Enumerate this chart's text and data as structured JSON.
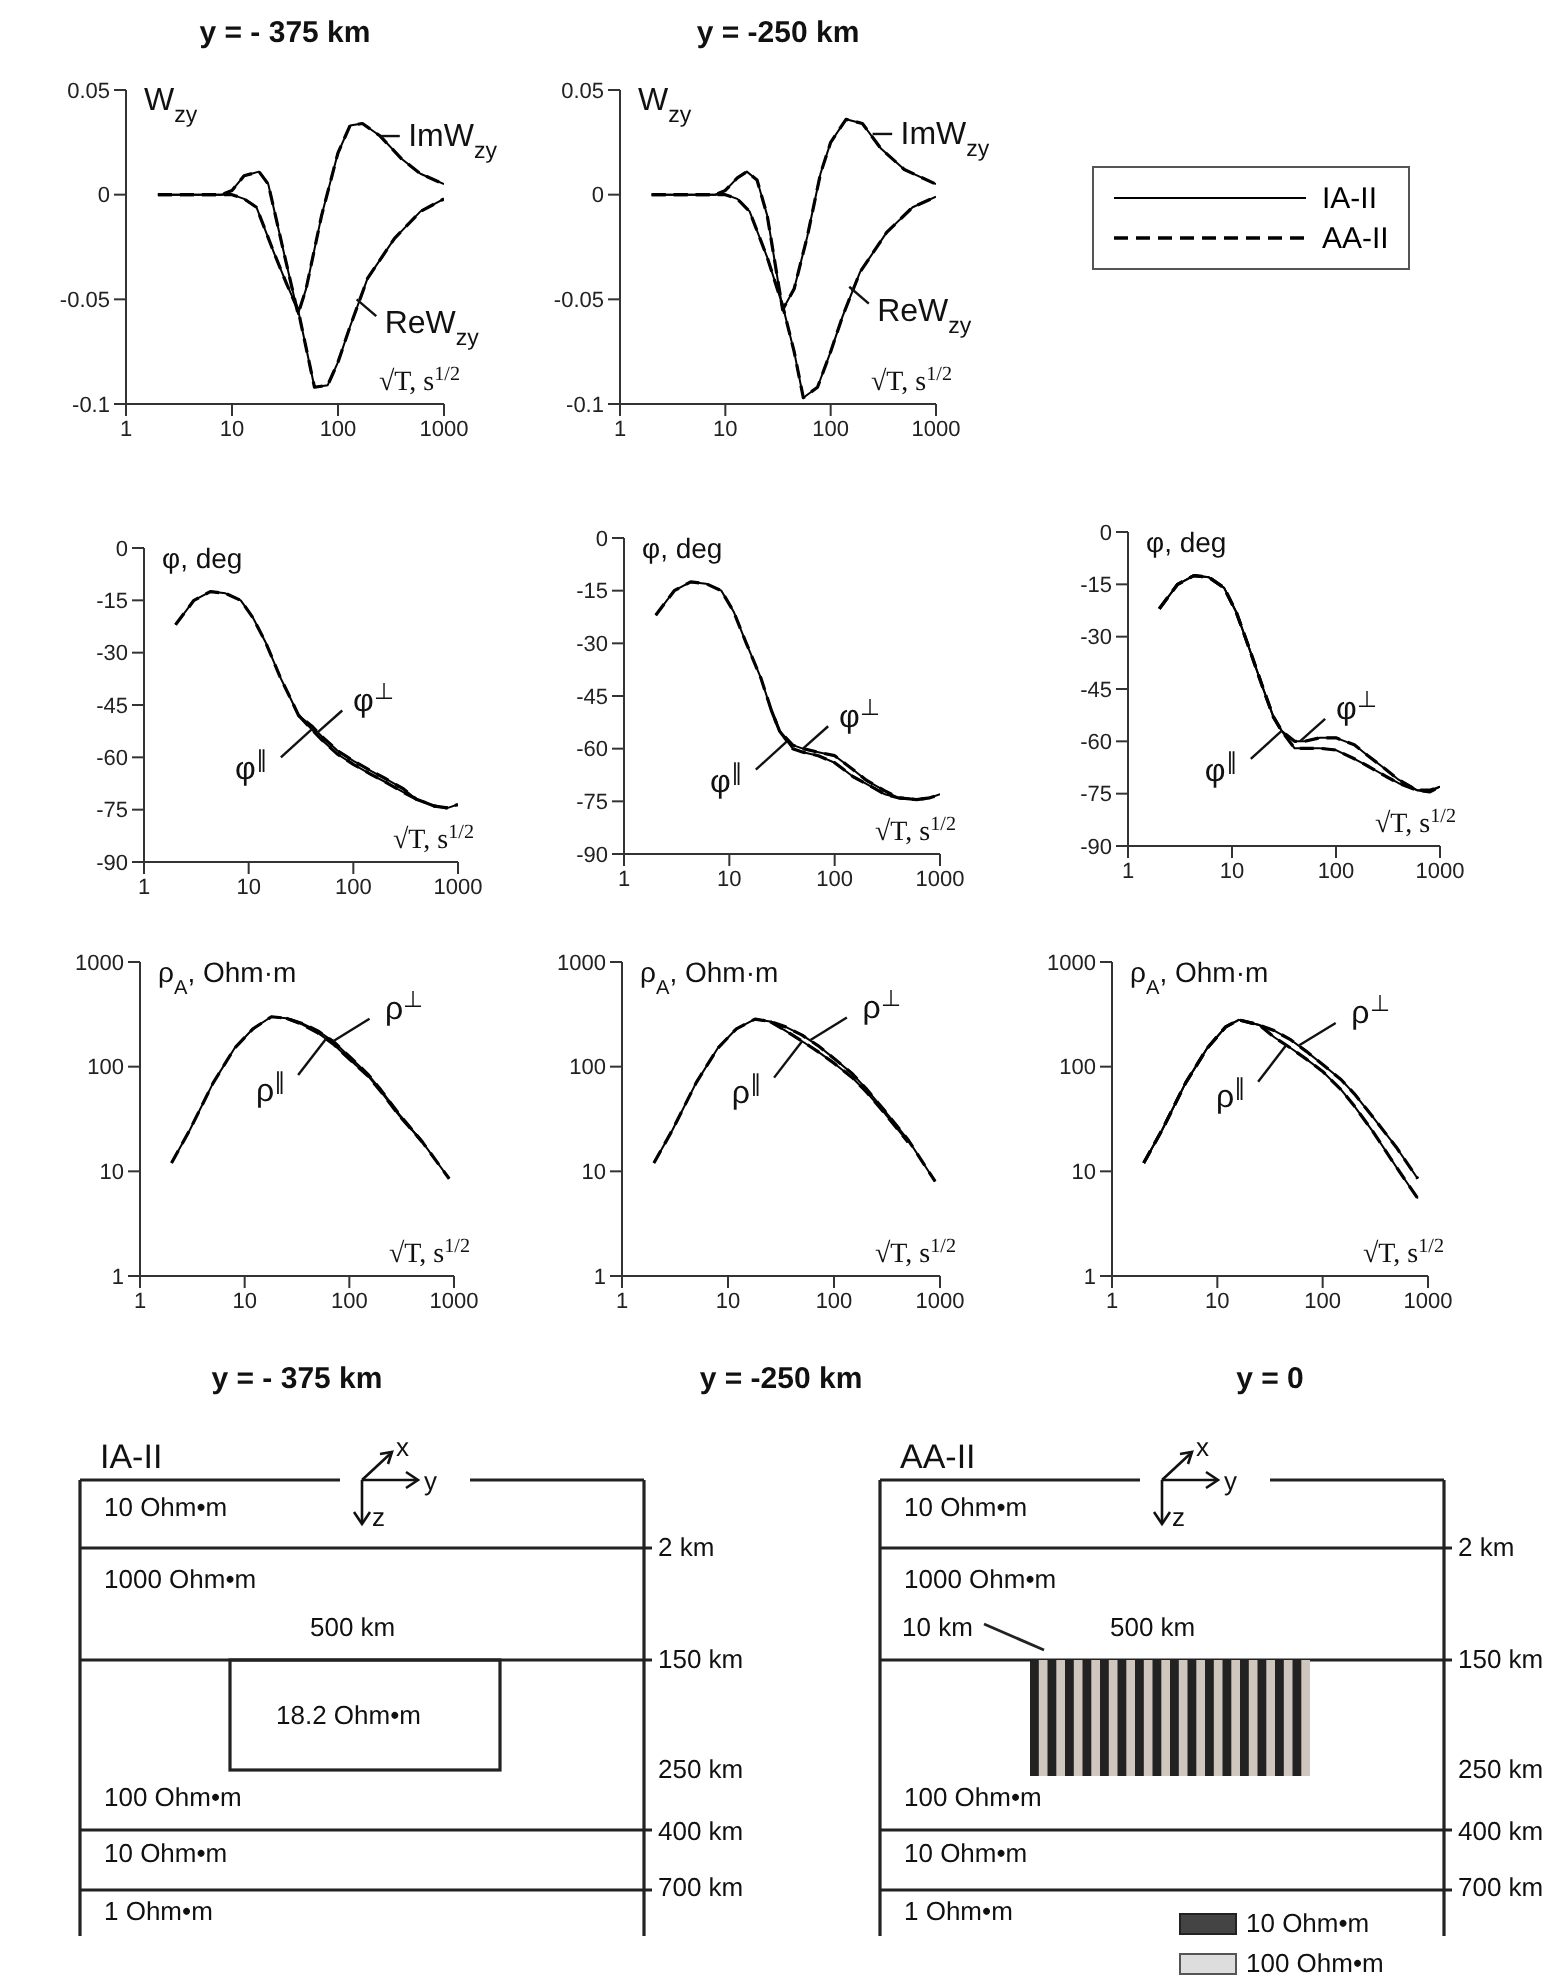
{
  "chart_data": [
    {
      "type": "line",
      "title": "y = - 375 km",
      "ylabel": "W$_{zy}$",
      "xlabel": "√T, s$^{1/2}$",
      "log": "x",
      "xlim": [
        1,
        1000
      ],
      "xticks": [
        1,
        10,
        100,
        1000
      ],
      "ylim": [
        -0.1,
        0.05
      ],
      "yticks": [
        0.05,
        0,
        -0.05,
        -0.1
      ],
      "series": [
        {
          "color": "#000000",
          "line_style": "solid",
          "x": [
            2,
            4,
            8,
            10,
            13,
            18,
            22,
            30,
            42,
            50,
            70,
            100,
            130,
            170,
            250,
            400,
            600,
            1000
          ],
          "values": [
            0,
            0,
            0,
            0.002,
            0.009,
            0.011,
            0.005,
            -0.025,
            -0.057,
            -0.045,
            -0.01,
            0.02,
            0.033,
            0.034,
            0.028,
            0.017,
            0.01,
            0.005
          ]
        },
        {
          "color": "#000000",
          "line_style": "dashed",
          "x": [
            2,
            4,
            8,
            10,
            13,
            18,
            22,
            30,
            42,
            50,
            70,
            100,
            130,
            170,
            250,
            400,
            600,
            1000
          ],
          "values": [
            0,
            0,
            0,
            0.002,
            0.009,
            0.011,
            0.005,
            -0.025,
            -0.057,
            -0.045,
            -0.01,
            0.02,
            0.033,
            0.034,
            0.028,
            0.017,
            0.01,
            0.005
          ]
        },
        {
          "color": "#000000",
          "line_style": "solid",
          "x": [
            2,
            4,
            8,
            10,
            13,
            17,
            25,
            33,
            42,
            60,
            80,
            100,
            130,
            190,
            340,
            600,
            1000
          ],
          "values": [
            0,
            0,
            0,
            0,
            -0.002,
            -0.006,
            -0.028,
            -0.043,
            -0.055,
            -0.092,
            -0.091,
            -0.08,
            -0.063,
            -0.04,
            -0.021,
            -0.008,
            -0.002
          ]
        },
        {
          "color": "#000000",
          "line_style": "dashed",
          "x": [
            2,
            4,
            8,
            10,
            13,
            17,
            25,
            33,
            42,
            60,
            80,
            100,
            130,
            190,
            340,
            600,
            1000
          ],
          "values": [
            0,
            0,
            0,
            0,
            -0.002,
            -0.006,
            -0.028,
            -0.043,
            -0.055,
            -0.092,
            -0.091,
            -0.08,
            -0.063,
            -0.04,
            -0.021,
            -0.008,
            -0.002
          ]
        }
      ],
      "annotations": [
        {
          "text": "ImW$_{zy}$",
          "x": 250,
          "y": 0.028
        },
        {
          "text": "ReW$_{zy}$",
          "x": 150,
          "y": -0.05
        }
      ]
    },
    {
      "type": "line",
      "title": "y = -250 km",
      "ylabel": "W$_{zy}$",
      "xlabel": "√T, s$^{1/2}$",
      "log": "x",
      "xlim": [
        1,
        1000
      ],
      "xticks": [
        1,
        10,
        100,
        1000
      ],
      "ylim": [
        -0.1,
        0.05
      ],
      "yticks": [
        0.05,
        0,
        -0.05,
        -0.1
      ],
      "legend": "right",
      "series": [
        {
          "name": "IA-II",
          "color": "#000000",
          "line_style": "solid",
          "x": [
            2,
            4,
            8,
            10,
            13,
            16,
            20,
            25,
            35,
            45,
            60,
            80,
            100,
            140,
            200,
            300,
            500,
            1000
          ],
          "values": [
            0,
            0,
            0,
            0.002,
            0.008,
            0.011,
            0.007,
            -0.01,
            -0.055,
            -0.045,
            -0.02,
            0.01,
            0.025,
            0.036,
            0.034,
            0.022,
            0.012,
            0.005
          ]
        },
        {
          "name": "AA-II",
          "color": "#000000",
          "line_style": "dashed",
          "x": [
            2,
            4,
            8,
            10,
            13,
            16,
            20,
            25,
            35,
            45,
            60,
            80,
            100,
            140,
            200,
            300,
            500,
            1000
          ],
          "values": [
            0,
            0,
            0,
            0.002,
            0.008,
            0.011,
            0.007,
            -0.01,
            -0.055,
            -0.045,
            -0.02,
            0.01,
            0.025,
            0.036,
            0.034,
            0.022,
            0.012,
            0.005
          ]
        },
        {
          "color": "#000000",
          "line_style": "solid",
          "x": [
            2,
            4,
            8,
            10,
            13,
            17,
            25,
            35,
            45,
            55,
            75,
            100,
            130,
            190,
            340,
            600,
            1000
          ],
          "values": [
            0,
            0,
            0,
            0,
            -0.002,
            -0.008,
            -0.03,
            -0.053,
            -0.075,
            -0.097,
            -0.092,
            -0.075,
            -0.058,
            -0.037,
            -0.018,
            -0.006,
            -0.001
          ]
        },
        {
          "color": "#000000",
          "line_style": "dashed",
          "x": [
            2,
            4,
            8,
            10,
            13,
            17,
            25,
            35,
            45,
            55,
            75,
            100,
            130,
            190,
            340,
            600,
            1000
          ],
          "values": [
            0,
            0,
            0,
            0,
            -0.002,
            -0.008,
            -0.03,
            -0.053,
            -0.075,
            -0.097,
            -0.092,
            -0.075,
            -0.058,
            -0.037,
            -0.018,
            -0.006,
            -0.001
          ]
        }
      ],
      "annotations": [
        {
          "text": "ImW$_{zy}$",
          "x": 250,
          "y": 0.029
        },
        {
          "text": "ReW$_{zy}$",
          "x": 150,
          "y": -0.044
        }
      ]
    },
    {
      "type": "line",
      "ylabel": "φ, deg",
      "xlabel": "√T, s$^{1/2}$",
      "log": "x",
      "xlim": [
        1,
        1000
      ],
      "xticks": [
        1,
        10,
        100,
        1000
      ],
      "ylim": [
        -90,
        0
      ],
      "yticks": [
        0,
        -15,
        -30,
        -45,
        -60,
        -75,
        -90
      ],
      "series": [
        {
          "color": "#000000",
          "line_style": "solid",
          "x": [
            2,
            3,
            4.3,
            6,
            8.4,
            11,
            14.5,
            20,
            25,
            30,
            40,
            50,
            70,
            100,
            150,
            200,
            300,
            400,
            600,
            800,
            1000
          ],
          "values": [
            -22,
            -15,
            -12.5,
            -13,
            -15,
            -20,
            -27,
            -37,
            -43,
            -48,
            -51,
            -54,
            -58,
            -61,
            -64,
            -66,
            -69,
            -72,
            -74,
            -74.5,
            -73.5
          ]
        },
        {
          "color": "#000000",
          "line_style": "dashed",
          "x": [
            2,
            3,
            4.3,
            6,
            8.4,
            11,
            14.5,
            20,
            25,
            30,
            40,
            50,
            70,
            100,
            150,
            200,
            300,
            400,
            600,
            800,
            1000
          ],
          "values": [
            -22,
            -15,
            -12.5,
            -13,
            -15,
            -20,
            -27,
            -37,
            -43,
            -48,
            -51,
            -54,
            -58,
            -61,
            -64,
            -66,
            -69,
            -72,
            -74,
            -74.5,
            -73.5
          ]
        },
        {
          "color": "#000000",
          "line_style": "solid",
          "x": [
            30,
            40,
            50,
            70,
            100,
            150,
            200,
            300,
            400,
            600,
            800
          ],
          "values": [
            -48,
            -52,
            -55,
            -59,
            -62,
            -65,
            -67,
            -70,
            -72,
            -74,
            -74.5
          ]
        },
        {
          "color": "#000000",
          "line_style": "dashed",
          "x": [
            30,
            40,
            50,
            70,
            100,
            150,
            200,
            300,
            400,
            600,
            800
          ],
          "values": [
            -48,
            -52,
            -55,
            -59,
            -62,
            -65,
            -67,
            -70,
            -72,
            -74,
            -74.5
          ]
        }
      ],
      "annotations": [
        {
          "text": "φ$^{⊥}$",
          "x": 45,
          "y": -53
        },
        {
          "text": "φ$^{∥}$",
          "x": 40,
          "y": -52
        }
      ]
    },
    {
      "type": "line",
      "ylabel": "φ, deg",
      "xlabel": "√T, s$^{1/2}$",
      "log": "x",
      "xlim": [
        1,
        1000
      ],
      "xticks": [
        1,
        10,
        100,
        1000
      ],
      "ylim": [
        -90,
        0
      ],
      "yticks": [
        0,
        -15,
        -30,
        -45,
        -60,
        -75,
        -90
      ],
      "series": [
        {
          "color": "#000000",
          "line_style": "solid",
          "x": [
            2,
            3,
            4.3,
            6,
            8.4,
            11,
            14.5,
            20,
            25,
            30,
            40,
            50,
            70,
            100,
            150,
            200,
            300,
            400,
            600,
            800,
            1000
          ],
          "values": [
            -22,
            -15,
            -12.5,
            -13,
            -15,
            -21,
            -30,
            -40,
            -49,
            -55,
            -59,
            -60,
            -61,
            -62,
            -66,
            -69,
            -72,
            -74,
            -74.5,
            -74,
            -73
          ]
        },
        {
          "color": "#000000",
          "line_style": "dashed",
          "x": [
            2,
            3,
            4.3,
            6,
            8.4,
            11,
            14.5,
            20,
            25,
            30,
            40,
            50,
            70,
            100,
            150,
            200,
            300,
            400,
            600,
            800,
            1000
          ],
          "values": [
            -22,
            -15,
            -12.5,
            -13,
            -15,
            -21,
            -30,
            -40,
            -49,
            -55,
            -59,
            -60,
            -61,
            -62,
            -66,
            -69,
            -72,
            -74,
            -74.5,
            -74,
            -73
          ]
        },
        {
          "color": "#000000",
          "line_style": "solid",
          "x": [
            25,
            30,
            40,
            50,
            70,
            100,
            150,
            200,
            300,
            400,
            600,
            800
          ],
          "values": [
            -49,
            -55,
            -60,
            -61,
            -62,
            -64,
            -68,
            -70,
            -73,
            -74,
            -74.5,
            -74
          ]
        },
        {
          "color": "#000000",
          "line_style": "dashed",
          "x": [
            25,
            30,
            40,
            50,
            70,
            100,
            150,
            200,
            300,
            400,
            600,
            800
          ],
          "values": [
            -49,
            -55,
            -60,
            -61,
            -62,
            -64,
            -68,
            -70,
            -73,
            -74,
            -74.5,
            -74
          ]
        }
      ],
      "annotations": [
        {
          "text": "φ$^{⊥}$",
          "x": 50,
          "y": -60
        },
        {
          "text": "φ$^{∥}$",
          "x": 35,
          "y": -58
        }
      ]
    },
    {
      "type": "line",
      "ylabel": "φ, deg",
      "xlabel": "√T, s$^{1/2}$",
      "log": "x",
      "xlim": [
        1,
        1000
      ],
      "xticks": [
        1,
        10,
        100,
        1000
      ],
      "ylim": [
        -90,
        0
      ],
      "yticks": [
        0,
        -15,
        -30,
        -45,
        -60,
        -75,
        -90
      ],
      "series": [
        {
          "color": "#000000",
          "line_style": "solid",
          "x": [
            2,
            3,
            4.3,
            6,
            8.4,
            11,
            14.5,
            20,
            25,
            30,
            40,
            50,
            70,
            100,
            150,
            200,
            300,
            400,
            600,
            800,
            1000
          ],
          "values": [
            -22,
            -15,
            -12.5,
            -13,
            -16,
            -23,
            -33,
            -45,
            -53,
            -57,
            -60,
            -60,
            -59,
            -59,
            -61,
            -64,
            -68,
            -71,
            -74,
            -74,
            -73
          ]
        },
        {
          "color": "#000000",
          "line_style": "dashed",
          "x": [
            2,
            3,
            4.3,
            6,
            8.4,
            11,
            14.5,
            20,
            25,
            30,
            40,
            50,
            70,
            100,
            150,
            200,
            300,
            400,
            600,
            800,
            1000
          ],
          "values": [
            -22,
            -15,
            -12.5,
            -13,
            -16,
            -23,
            -33,
            -45,
            -53,
            -57,
            -60,
            -60,
            -59,
            -59,
            -61,
            -64,
            -68,
            -71,
            -74,
            -74,
            -73
          ]
        },
        {
          "color": "#000000",
          "line_style": "solid",
          "x": [
            2,
            3,
            4.3,
            6,
            8.4,
            11,
            14.5,
            20,
            25,
            30,
            40,
            50,
            70,
            100,
            150,
            200,
            300,
            400,
            600,
            800,
            1000
          ],
          "values": [
            -22,
            -15,
            -12.5,
            -13,
            -16,
            -23,
            -33,
            -45,
            -53,
            -57,
            -62,
            -62,
            -62,
            -62.5,
            -65,
            -67,
            -70,
            -72,
            -74,
            -74.5,
            -73
          ]
        },
        {
          "color": "#000000",
          "line_style": "dashed",
          "x": [
            2,
            3,
            4.3,
            6,
            8.4,
            11,
            14.5,
            20,
            25,
            30,
            40,
            50,
            70,
            100,
            150,
            200,
            300,
            400,
            600,
            800,
            1000
          ],
          "values": [
            -22,
            -15,
            -12.5,
            -13,
            -16,
            -23,
            -33,
            -45,
            -53,
            -57,
            -62,
            -62,
            -62,
            -62.5,
            -65,
            -67,
            -70,
            -72,
            -74,
            -74.5,
            -73
          ]
        }
      ],
      "annotations": [
        {
          "text": "φ$^{⊥}$",
          "x": 45,
          "y": -60
        },
        {
          "text": "φ$^{∥}$",
          "x": 30,
          "y": -57
        }
      ]
    },
    {
      "type": "line",
      "ylabel": "ρ$_{A}$, Ohm·m",
      "xlabel": "√T, s$^{1/2}$",
      "subtitle": "y = - 375 km",
      "log": "xy",
      "xlim": [
        1,
        1000
      ],
      "xticks": [
        1,
        10,
        100,
        1000
      ],
      "ylim": [
        1,
        1000
      ],
      "yticks": [
        1000,
        100,
        10,
        1
      ],
      "series": [
        {
          "color": "#000000",
          "line_style": "solid",
          "x": [
            2,
            3,
            5,
            8,
            12,
            18,
            25,
            35,
            50,
            70,
            100,
            150,
            200,
            300,
            500,
            900
          ],
          "values": [
            12,
            25,
            70,
            150,
            230,
            300,
            290,
            260,
            220,
            175,
            125,
            85,
            60,
            35,
            19,
            8.5
          ]
        },
        {
          "color": "#000000",
          "line_style": "dashed",
          "x": [
            2,
            3,
            5,
            8,
            12,
            18,
            25,
            35,
            50,
            70,
            100,
            150,
            200,
            300,
            500,
            900
          ],
          "values": [
            12,
            25,
            70,
            150,
            230,
            300,
            290,
            260,
            220,
            175,
            125,
            85,
            60,
            35,
            19,
            8.5
          ]
        },
        {
          "color": "#000000",
          "line_style": "solid",
          "x": [
            25,
            35,
            50,
            70,
            100,
            150,
            200,
            300,
            500
          ],
          "values": [
            290,
            255,
            210,
            165,
            118,
            82,
            58,
            34,
            19
          ]
        },
        {
          "color": "#000000",
          "line_style": "dashed",
          "x": [
            25,
            35,
            50,
            70,
            100,
            150,
            200,
            300,
            500
          ],
          "values": [
            290,
            255,
            210,
            165,
            118,
            82,
            58,
            34,
            19
          ]
        }
      ],
      "annotations": [
        {
          "text": "ρ$^{⊥}$",
          "x": 70,
          "y": 175
        },
        {
          "text": "ρ$^{∥}$",
          "x": 60,
          "y": 185
        }
      ]
    },
    {
      "type": "line",
      "ylabel": "ρ$_{A}$, Ohm·m",
      "xlabel": "√T, s$^{1/2}$",
      "subtitle": "y = -250 km",
      "log": "xy",
      "xlim": [
        1,
        1000
      ],
      "xticks": [
        1,
        10,
        100,
        1000
      ],
      "ylim": [
        1,
        1000
      ],
      "yticks": [
        1000,
        100,
        10,
        1
      ],
      "series": [
        {
          "color": "#000000",
          "line_style": "solid",
          "x": [
            2,
            3,
            5,
            8,
            12,
            18,
            25,
            35,
            50,
            70,
            100,
            150,
            200,
            300,
            500,
            900
          ],
          "values": [
            12,
            25,
            70,
            150,
            230,
            285,
            270,
            240,
            200,
            160,
            120,
            85,
            62,
            38,
            20,
            8
          ]
        },
        {
          "color": "#000000",
          "line_style": "dashed",
          "x": [
            2,
            3,
            5,
            8,
            12,
            18,
            25,
            35,
            50,
            70,
            100,
            150,
            200,
            300,
            500,
            900
          ],
          "values": [
            12,
            25,
            70,
            150,
            230,
            285,
            270,
            240,
            200,
            160,
            120,
            85,
            62,
            38,
            20,
            8
          ]
        },
        {
          "color": "#000000",
          "line_style": "solid",
          "x": [
            25,
            35,
            50,
            70,
            100,
            150,
            200,
            300,
            500
          ],
          "values": [
            270,
            220,
            175,
            140,
            108,
            78,
            58,
            36,
            19
          ]
        },
        {
          "color": "#000000",
          "line_style": "dashed",
          "x": [
            25,
            35,
            50,
            70,
            100,
            150,
            200,
            300,
            500
          ],
          "values": [
            270,
            220,
            175,
            140,
            108,
            78,
            58,
            36,
            19
          ]
        }
      ],
      "annotations": [
        {
          "text": "ρ$^{⊥}$",
          "x": 60,
          "y": 180
        },
        {
          "text": "ρ$^{∥}$",
          "x": 50,
          "y": 175
        }
      ]
    },
    {
      "type": "line",
      "ylabel": "ρ$_{A}$, Ohm·m",
      "xlabel": "√T, s$^{1/2}$",
      "subtitle": "y = 0",
      "log": "xy",
      "xlim": [
        1,
        1000
      ],
      "xticks": [
        1,
        10,
        100,
        1000
      ],
      "ylim": [
        1,
        1000
      ],
      "yticks": [
        1000,
        100,
        10,
        1
      ],
      "series": [
        {
          "color": "#000000",
          "line_style": "solid",
          "x": [
            2,
            3,
            5,
            8,
            12,
            16,
            25,
            35,
            50,
            70,
            100,
            150,
            200,
            300,
            500,
            800
          ],
          "values": [
            12,
            25,
            70,
            150,
            240,
            280,
            250,
            220,
            180,
            140,
            105,
            75,
            55,
            33,
            17,
            8.5
          ]
        },
        {
          "color": "#000000",
          "line_style": "dashed",
          "x": [
            2,
            3,
            5,
            8,
            12,
            16,
            25,
            35,
            50,
            70,
            100,
            150,
            200,
            300,
            500,
            800
          ],
          "values": [
            12,
            25,
            70,
            150,
            240,
            280,
            250,
            220,
            180,
            140,
            105,
            75,
            55,
            33,
            17,
            8.5
          ]
        },
        {
          "color": "#000000",
          "line_style": "solid",
          "x": [
            2,
            3,
            5,
            8,
            12,
            16,
            25,
            35,
            50,
            70,
            100,
            150,
            200,
            300,
            500,
            800
          ],
          "values": [
            12,
            25,
            70,
            150,
            240,
            280,
            250,
            190,
            150,
            118,
            90,
            60,
            42,
            24,
            11,
            5.5
          ]
        },
        {
          "color": "#000000",
          "line_style": "dashed",
          "x": [
            2,
            3,
            5,
            8,
            12,
            16,
            25,
            35,
            50,
            70,
            100,
            150,
            200,
            300,
            500,
            800
          ],
          "values": [
            12,
            25,
            70,
            150,
            240,
            280,
            250,
            190,
            150,
            118,
            90,
            60,
            42,
            24,
            11,
            5.5
          ]
        }
      ],
      "annotations": [
        {
          "text": "ρ$^{⊥}$",
          "x": 60,
          "y": 160
        },
        {
          "text": "ρ$^{∥}$",
          "x": 45,
          "y": 160
        }
      ]
    },
    {
      "type": "other",
      "title": "IA-II",
      "annotations": [
        "10 Ohm•m",
        "1000 Ohm•m",
        "500 km",
        "18.2 Ohm•m",
        "100 Ohm•m",
        "10 Ohm•m",
        "1 Ohm•m",
        "2 km",
        "150 km",
        "250 km",
        "400 km",
        "700 km",
        "x",
        "y",
        "z"
      ]
    },
    {
      "type": "other",
      "title": "AA-II",
      "annotations": [
        "10 Ohm•m",
        "1000 Ohm•m",
        "10 km",
        "500 km",
        "100 Ohm•m",
        "10 Ohm•m",
        "1 Ohm•m",
        "2 km",
        "150 km",
        "250 km",
        "400 km",
        "700 km",
        "x",
        "y",
        "z",
        "10 Ohm•m",
        "100 Ohm•m"
      ]
    }
  ]
}
